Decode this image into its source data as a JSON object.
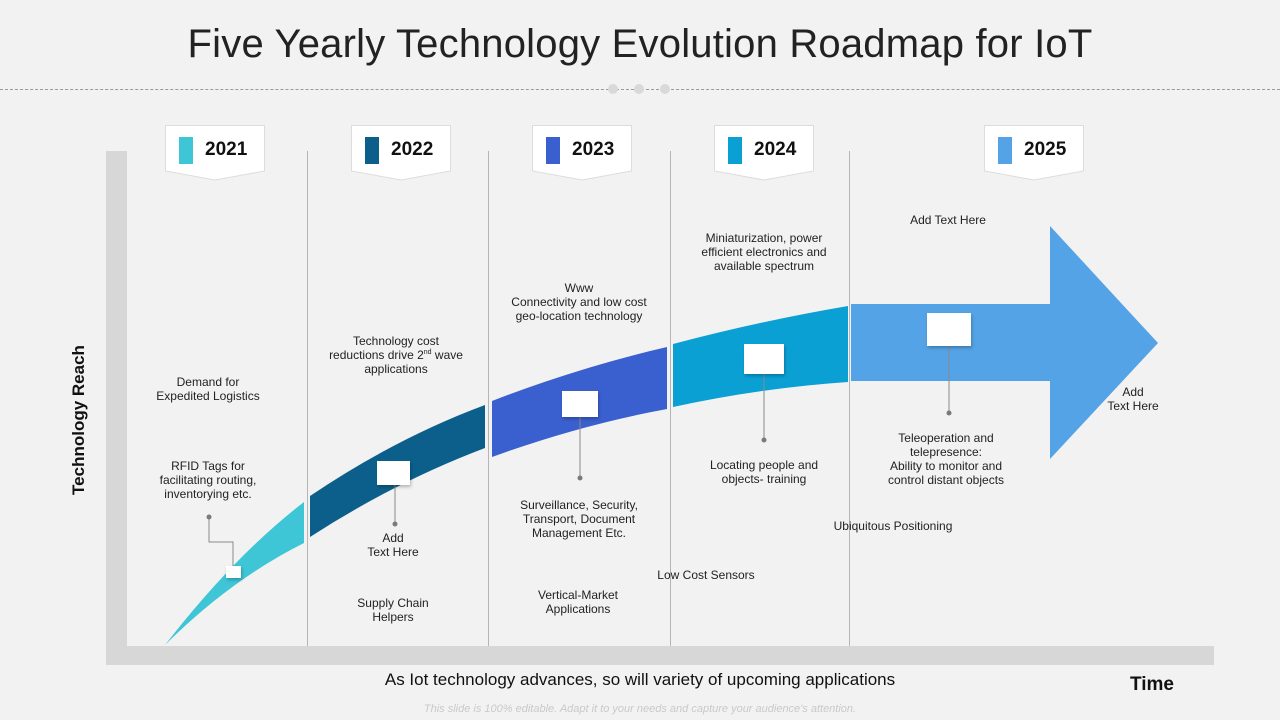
{
  "title": "Five Yearly Technology Evolution Roadmap for IoT",
  "axis": {
    "y_label": "Technology Reach",
    "x_label": "Time"
  },
  "subtitle": "As Iot technology advances, so will variety of upcoming applications",
  "footer": "This slide is 100% editable. Adapt it to your needs and capture your audience's attention.",
  "years": [
    {
      "label": "2021",
      "color": "#3ec5d6"
    },
    {
      "label": "2022",
      "color": "#0b5f8a"
    },
    {
      "label": "2023",
      "color": "#3a5fcf"
    },
    {
      "label": "2024",
      "color": "#0aa0d4"
    },
    {
      "label": "2025",
      "color": "#54a3e6"
    }
  ],
  "labels": {
    "demand": "Demand for\nExpedited Logistics",
    "rfid": "RFID Tags for\nfacilitating routing,\ninventorying etc.",
    "tech_cost": {
      "line1": "Technology cost",
      "line2_pre": "reductions drive 2",
      "line2_sup": "nd",
      "line2_post": " wave",
      "line3": "applications"
    },
    "add_text_2022": "Add\nText Here",
    "supply_chain": "Supply Chain\nHelpers",
    "www": "Www\nConnectivity and low cost\ngeo-location technology",
    "surveillance": "Surveillance, Security,\nTransport, Document\nManagement Etc.",
    "vertical_market": "Vertical-Market\nApplications",
    "miniaturization": "Miniaturization, power\nefficient electronics and\navailable spectrum",
    "locating": "Locating people and\nobjects- training",
    "low_cost_sensors": "Low Cost Sensors",
    "add_text_2025": "Add Text Here",
    "teleoperation": "Teleoperation and\ntelepresence:\nAbility to monitor and\ncontrol distant objects",
    "ubiquitous": "Ubiquitous Positioning",
    "add_text_arrow": "Add\nText Here"
  }
}
